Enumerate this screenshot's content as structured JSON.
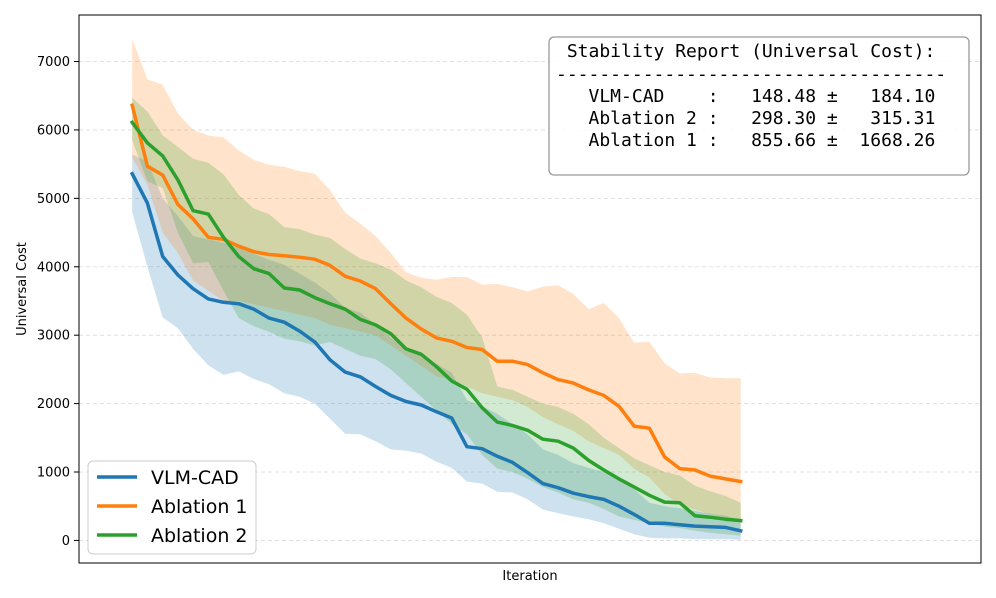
{
  "chart_data": {
    "type": "line",
    "xlabel": "Iteration",
    "ylabel": "Universal Cost",
    "ylim": [
      -330,
      7680
    ],
    "xlim": [
      -3.5,
      55.8
    ],
    "yticks": [
      0,
      1000,
      2000,
      3000,
      4000,
      5000,
      6000,
      7000
    ],
    "x_ticks_shown": false,
    "grid": "horizontal-dashed",
    "legend_position": "bottom-left",
    "series": [
      {
        "name": "VLM-CAD",
        "color": "#1f77b4",
        "values": [
          5360,
          4930,
          4150,
          3880,
          3680,
          3530,
          3480,
          3460,
          3380,
          3250,
          3190,
          3060,
          2900,
          2640,
          2460,
          2390,
          2250,
          2120,
          2030,
          1980,
          1880,
          1790,
          1370,
          1340,
          1230,
          1140,
          990,
          830,
          770,
          690,
          640,
          600,
          500,
          380,
          250,
          250,
          230,
          210,
          200,
          190,
          140
        ],
        "lower": [
          4800,
          4000,
          3260,
          3100,
          2800,
          2560,
          2420,
          2470,
          2360,
          2280,
          2150,
          2100,
          2000,
          1780,
          1560,
          1550,
          1450,
          1330,
          1310,
          1270,
          1150,
          1060,
          860,
          830,
          710,
          700,
          600,
          450,
          400,
          350,
          310,
          250,
          170,
          90,
          40,
          30,
          30,
          20,
          20,
          20,
          10
        ],
        "upper": [
          5640,
          5540,
          5000,
          4740,
          4450,
          4400,
          4350,
          4280,
          4190,
          4100,
          4030,
          3900,
          3770,
          3610,
          3400,
          3330,
          3150,
          2960,
          2810,
          2690,
          2580,
          2450,
          2050,
          1960,
          1850,
          1700,
          1550,
          1330,
          1250,
          1130,
          1060,
          1000,
          890,
          750,
          550,
          500,
          470,
          430,
          390,
          360,
          300
        ]
      },
      {
        "name": "Ablation 1",
        "color": "#ff7f0e",
        "values": [
          6360,
          5470,
          5340,
          4910,
          4700,
          4430,
          4400,
          4300,
          4220,
          4180,
          4160,
          4140,
          4110,
          4020,
          3860,
          3790,
          3680,
          3460,
          3250,
          3090,
          2960,
          2910,
          2820,
          2790,
          2620,
          2620,
          2570,
          2450,
          2350,
          2300,
          2200,
          2120,
          1960,
          1670,
          1640,
          1220,
          1050,
          1030,
          940,
          900,
          860
        ],
        "lower": [
          5600,
          5200,
          4500,
          4200,
          3800,
          3650,
          3500,
          3500,
          3450,
          3400,
          3350,
          3300,
          3250,
          3150,
          3100,
          3050,
          3000,
          2850,
          2700,
          2550,
          2400,
          2350,
          2250,
          2150,
          2100,
          2050,
          1950,
          1800,
          1700,
          1600,
          1450,
          1350,
          1250,
          1050,
          920,
          680,
          520,
          450,
          380,
          330,
          250
        ],
        "upper": [
          7330,
          6740,
          6660,
          6240,
          6000,
          5920,
          5890,
          5700,
          5560,
          5490,
          5460,
          5400,
          5360,
          5120,
          4790,
          4630,
          4450,
          4200,
          3920,
          3840,
          3810,
          3850,
          3850,
          3740,
          3750,
          3700,
          3640,
          3710,
          3730,
          3600,
          3380,
          3470,
          3250,
          2890,
          2900,
          2590,
          2440,
          2450,
          2380,
          2370,
          2370
        ]
      },
      {
        "name": "Ablation 2",
        "color": "#2ca02c",
        "values": [
          6110,
          5810,
          5620,
          5270,
          4820,
          4770,
          4430,
          4150,
          3970,
          3900,
          3690,
          3660,
          3550,
          3460,
          3380,
          3230,
          3150,
          3020,
          2800,
          2720,
          2540,
          2330,
          2210,
          1940,
          1730,
          1680,
          1610,
          1480,
          1450,
          1350,
          1170,
          1030,
          900,
          780,
          660,
          560,
          550,
          360,
          340,
          310,
          290
        ],
        "lower": [
          5850,
          5250,
          5150,
          4500,
          4050,
          4070,
          3650,
          3250,
          3130,
          3050,
          2950,
          2910,
          2850,
          2900,
          2800,
          2700,
          2650,
          2500,
          2300,
          2100,
          1900,
          1700,
          1550,
          1250,
          1050,
          1000,
          900,
          780,
          700,
          600,
          550,
          460,
          350,
          300,
          250,
          200,
          180,
          140,
          110,
          90,
          70
        ],
        "upper": [
          6470,
          6270,
          5920,
          5750,
          5580,
          5520,
          5350,
          5050,
          4850,
          4770,
          4580,
          4550,
          4470,
          4420,
          4260,
          4120,
          4050,
          3960,
          3800,
          3700,
          3560,
          3470,
          3300,
          2970,
          2250,
          2200,
          2100,
          2000,
          1950,
          1850,
          1700,
          1500,
          1350,
          1200,
          1100,
          1000,
          950,
          800,
          720,
          650,
          550
        ]
      }
    ]
  },
  "stability_report": {
    "title": " Stability Report (Universal Cost):",
    "separator": "------------------------------------",
    "lines": [
      "   VLM-CAD    :   148.48 ±   184.10",
      "   Ablation 2 :   298.30 ±   315.31",
      "   Ablation 1 :   855.66 ±  1668.26"
    ]
  }
}
